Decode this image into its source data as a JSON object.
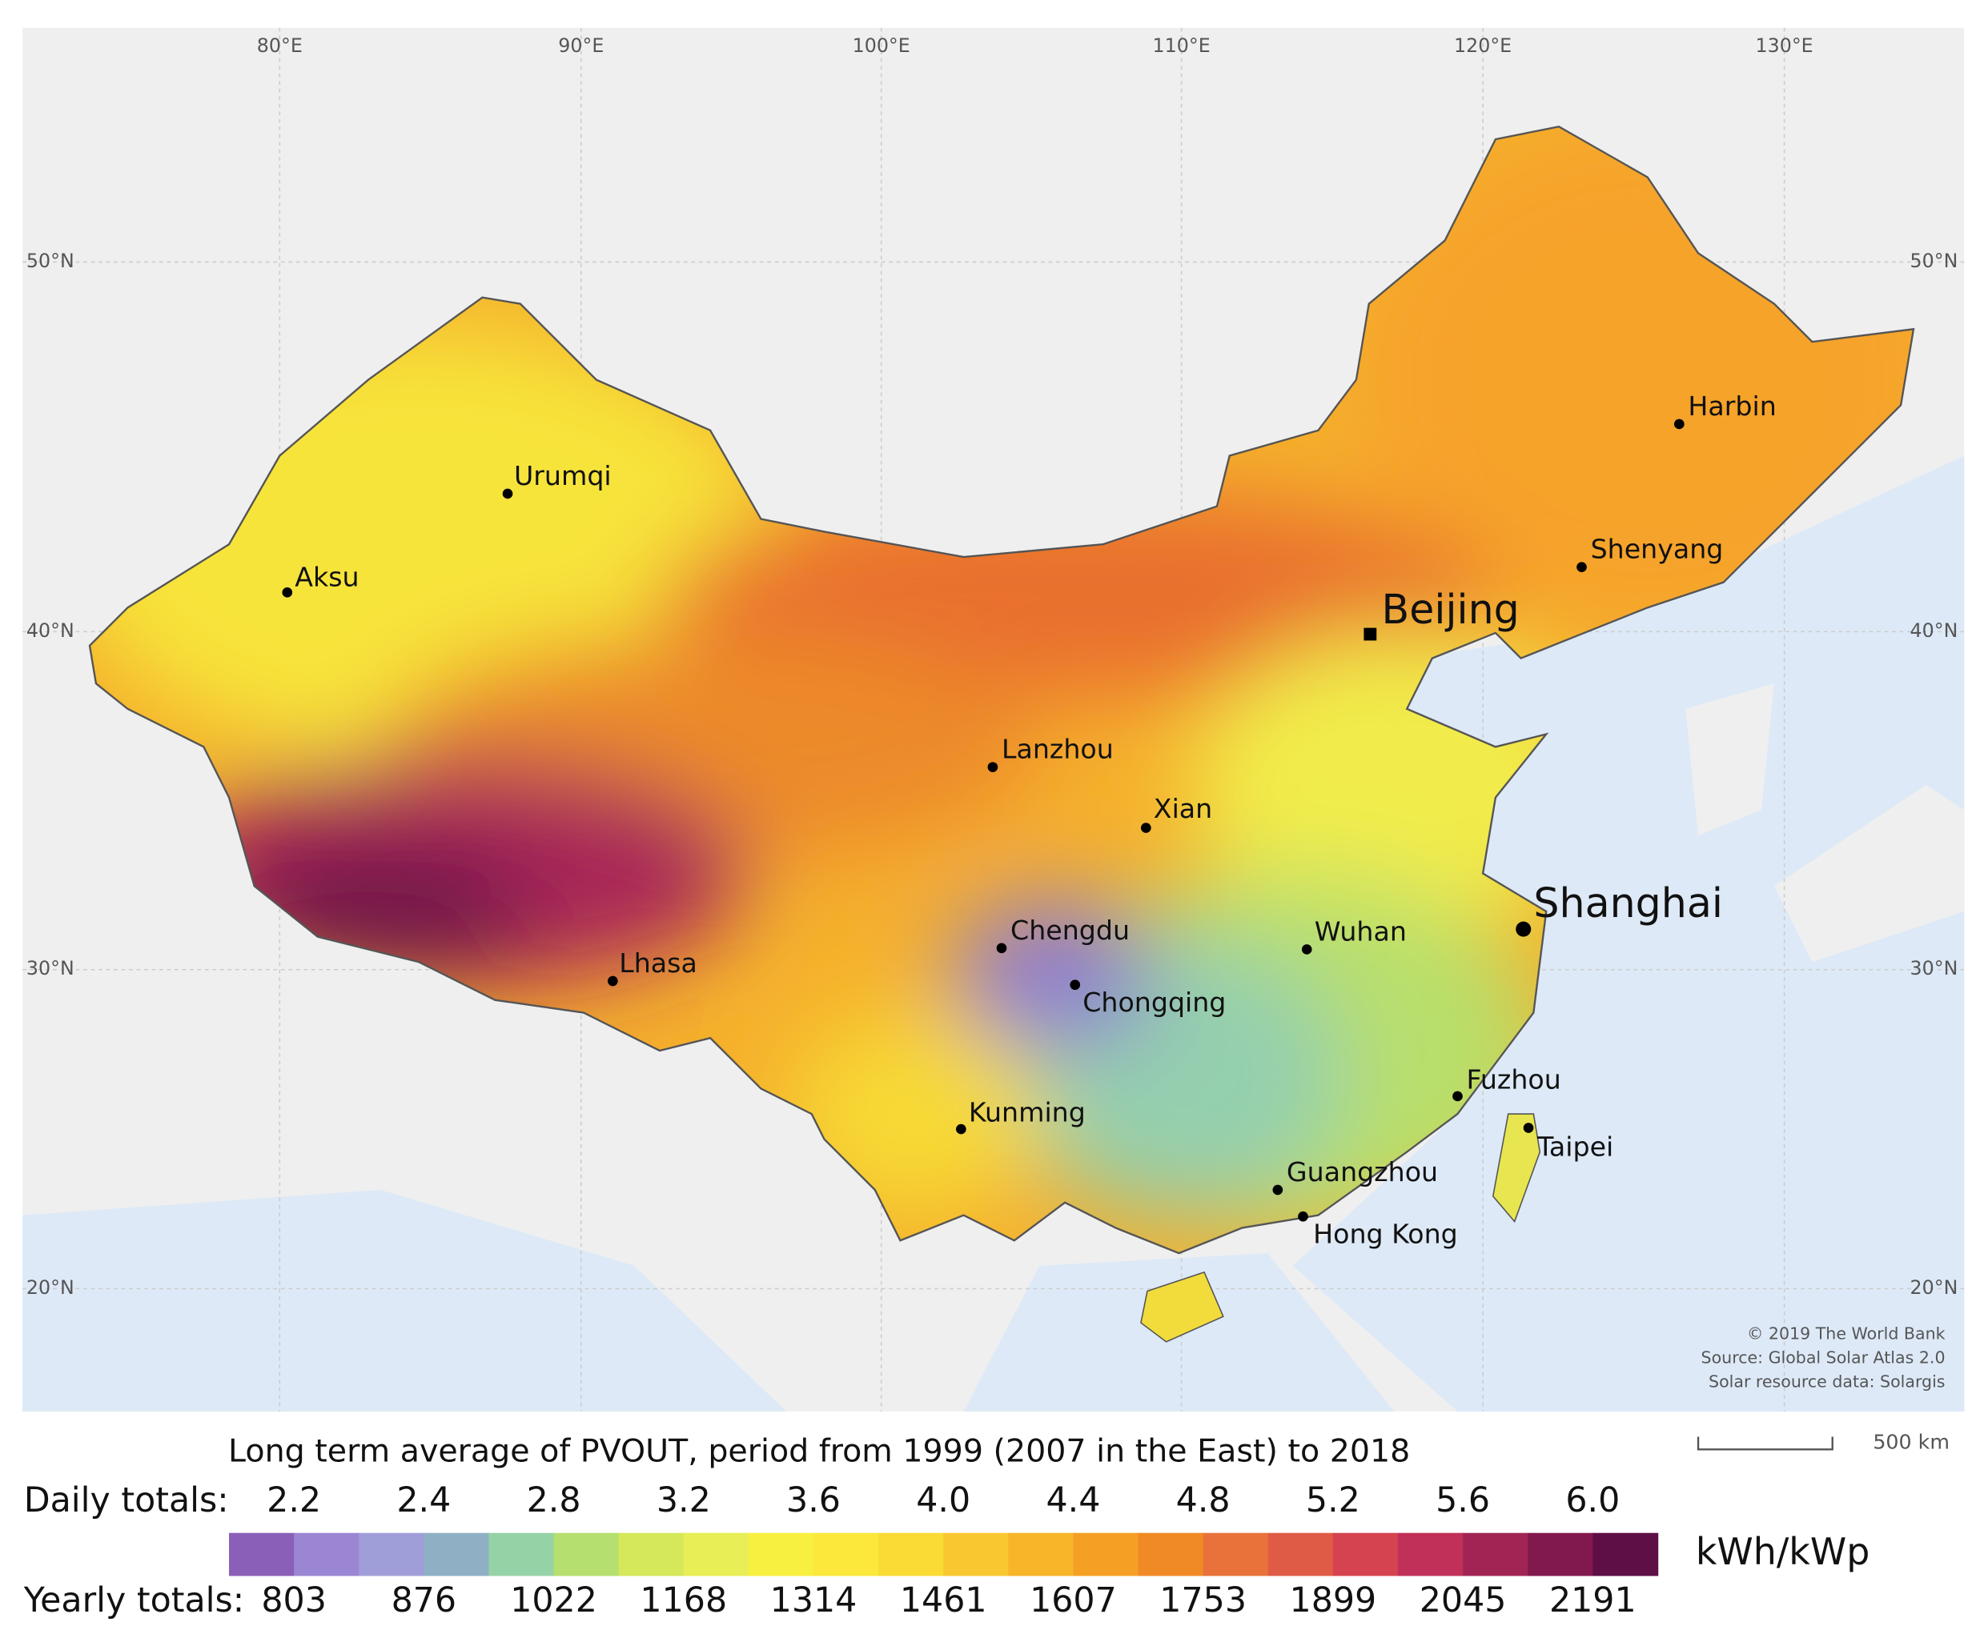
{
  "graticule": {
    "longitudes": [
      "80°E",
      "90°E",
      "100°E",
      "110°E",
      "120°E",
      "130°E"
    ],
    "latitudes": [
      "50°N",
      "40°N",
      "30°N",
      "20°N"
    ]
  },
  "cities": [
    {
      "name": "Urumqi"
    },
    {
      "name": "Aksu"
    },
    {
      "name": "Harbin"
    },
    {
      "name": "Shenyang"
    },
    {
      "name": "Beijing"
    },
    {
      "name": "Lanzhou"
    },
    {
      "name": "Xian"
    },
    {
      "name": "Shanghai"
    },
    {
      "name": "Chengdu"
    },
    {
      "name": "Wuhan"
    },
    {
      "name": "Lhasa"
    },
    {
      "name": "Chongqing"
    },
    {
      "name": "Fuzhou"
    },
    {
      "name": "Kunming"
    },
    {
      "name": "Taipei"
    },
    {
      "name": "Guangzhou"
    },
    {
      "name": "Hong Kong"
    }
  ],
  "credits": [
    "© 2019 The World Bank",
    "Source: Global Solar Atlas 2.0",
    "Solar resource data: Solargis"
  ],
  "scale_bar": "500 km",
  "legend": {
    "title": "Long term average of PVOUT, period from 1999 (2007 in the East) to 2018",
    "daily_label": "Daily totals:",
    "daily": [
      "2.2",
      "2.4",
      "2.8",
      "3.2",
      "3.6",
      "4.0",
      "4.4",
      "4.8",
      "5.2",
      "5.6",
      "6.0"
    ],
    "yearly_label": "Yearly totals:",
    "yearly": [
      "803",
      "876",
      "1022",
      "1168",
      "1314",
      "1461",
      "1607",
      "1753",
      "1899",
      "2045",
      "2191"
    ],
    "unit": "kWh/kWp",
    "colors": [
      "#8a5fb8",
      "#9b86d4",
      "#a09ed9",
      "#8fb0c4",
      "#95d3a6",
      "#b5df6e",
      "#d4e85a",
      "#e8ee55",
      "#f8f040",
      "#fbe83a",
      "#fadb35",
      "#f9c830",
      "#f8b52a",
      "#f5a025",
      "#f08a25",
      "#e8723a",
      "#e05b45",
      "#d4434f",
      "#c03058",
      "#a02555",
      "#82194e",
      "#5e0f45"
    ]
  }
}
